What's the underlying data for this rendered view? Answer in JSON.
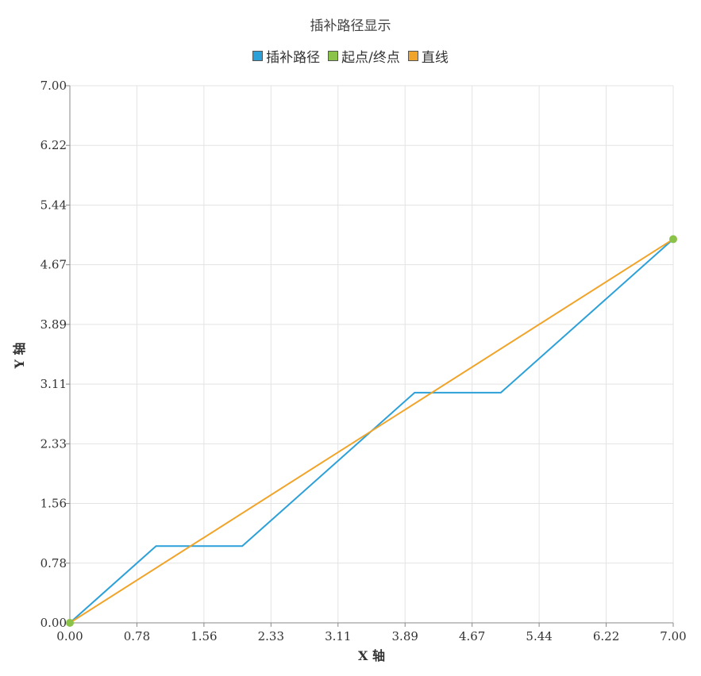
{
  "chart_data": {
    "type": "line",
    "title": "插补路径显示",
    "xlabel": "X 轴",
    "ylabel": "Y 轴",
    "xlim": [
      0,
      7
    ],
    "ylim": [
      0,
      7
    ],
    "x_ticks": [
      "0.00",
      "0.78",
      "1.56",
      "2.33",
      "3.11",
      "3.89",
      "4.67",
      "5.44",
      "6.22",
      "7.00"
    ],
    "y_ticks": [
      "0.00",
      "0.78",
      "1.56",
      "2.33",
      "3.11",
      "3.89",
      "4.67",
      "5.44",
      "6.22",
      "7.00"
    ],
    "grid": true,
    "legend_position": "top-center",
    "series": [
      {
        "name": "插补路径",
        "color": "#2ca0d8",
        "kind": "line",
        "points": [
          [
            0,
            0
          ],
          [
            1,
            1
          ],
          [
            2,
            1
          ],
          [
            4,
            3
          ],
          [
            5,
            3
          ],
          [
            7,
            5
          ]
        ]
      },
      {
        "name": "起点/终点",
        "color": "#8bc34a",
        "kind": "scatter",
        "points": [
          [
            0,
            0
          ],
          [
            7,
            5
          ]
        ]
      },
      {
        "name": "直线",
        "color": "#f0a42a",
        "kind": "line",
        "points": [
          [
            0,
            0
          ],
          [
            7,
            5
          ]
        ]
      }
    ]
  }
}
